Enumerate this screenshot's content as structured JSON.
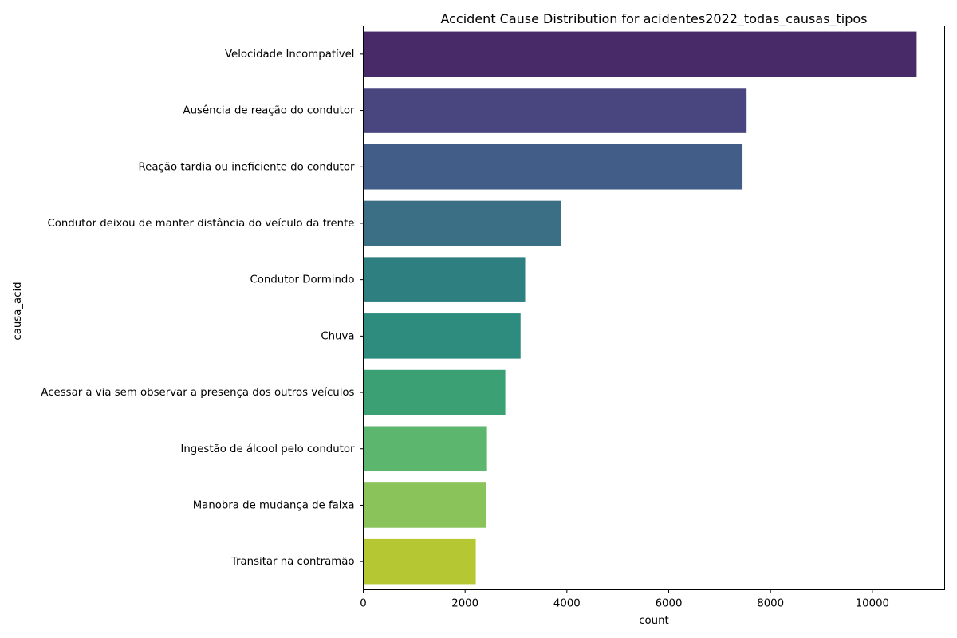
{
  "chart_data": {
    "type": "bar",
    "orientation": "horizontal",
    "title": "Accident Cause Distribution for acidentes2022_todas_causas_tipos",
    "xlabel": "count",
    "ylabel": "causa_acid",
    "xlim": [
      0,
      11420
    ],
    "xticks": [
      0,
      2000,
      4000,
      6000,
      8000,
      10000
    ],
    "categories": [
      "Velocidade Incompatível",
      "Ausência de reação do condutor",
      "Reação tardia ou ineficiente do condutor",
      "Condutor deixou de manter distância do veículo da frente",
      "Condutor Dormindo",
      "Chuva",
      "Acessar a via sem observar a presença dos outros veículos",
      "Ingestão de álcool pelo condutor",
      "Manobra de mudança de faixa",
      "Transitar na contramão"
    ],
    "values": [
      10870,
      7530,
      7450,
      3880,
      3180,
      3090,
      2790,
      2430,
      2420,
      2210
    ],
    "colors": [
      "#482a69",
      "#48457f",
      "#425d87",
      "#3a6f85",
      "#2e8080",
      "#2e8c7e",
      "#3ba174",
      "#5db66d",
      "#8bc35b",
      "#b5c834"
    ],
    "grid": false,
    "legend": "none"
  }
}
